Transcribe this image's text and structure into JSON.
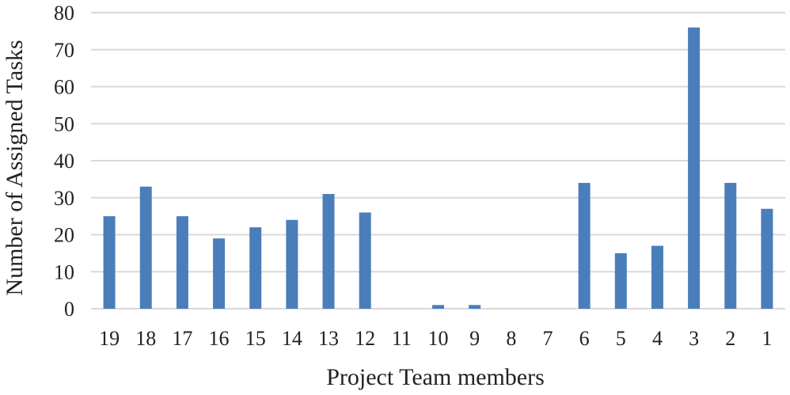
{
  "chart_data": {
    "type": "bar",
    "xlabel": "Project Team members",
    "ylabel": "Number of Assigned Tasks",
    "categories": [
      "19",
      "18",
      "17",
      "16",
      "15",
      "14",
      "13",
      "12",
      "11",
      "10",
      "9",
      "8",
      "7",
      "6",
      "5",
      "4",
      "3",
      "2",
      "1"
    ],
    "values": [
      25,
      33,
      25,
      19,
      22,
      24,
      31,
      26,
      0,
      1,
      1,
      0,
      0,
      34,
      15,
      17,
      76,
      34,
      27
    ],
    "ylim": [
      0,
      80
    ],
    "yticks": [
      0,
      10,
      20,
      30,
      40,
      50,
      60,
      70,
      80
    ],
    "grid": true,
    "bar_color": "#4a7ebb"
  }
}
